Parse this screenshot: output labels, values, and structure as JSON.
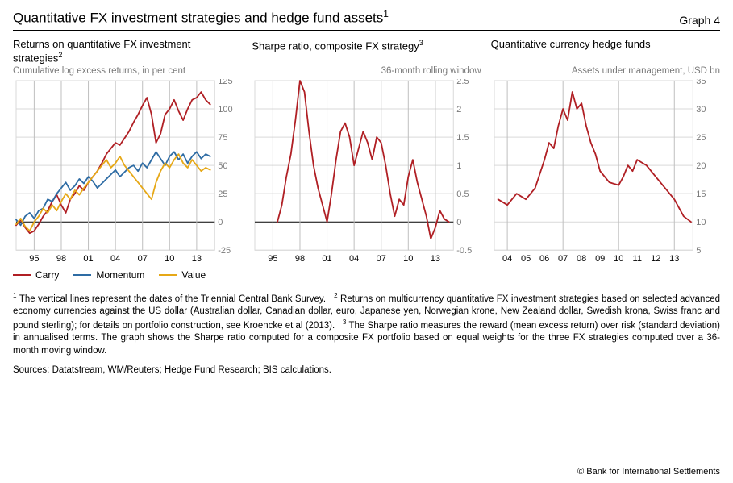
{
  "header": {
    "title_html": "Quantitative FX investment strategies and hedge fund assets<sup>1</sup>",
    "graph_label": "Graph 4"
  },
  "colors": {
    "carry": "#b01f24",
    "momentum": "#2e6ca4",
    "value": "#e6a817",
    "grid": "#d9d9d9",
    "grid_emph": "#bfbfbf",
    "axis_text": "#7a7a7a",
    "zero_line": "#000000",
    "vline": "#bfbfbf",
    "plot_bg": "#ffffff"
  },
  "style": {
    "line_width": 1.8,
    "grid_width": 1,
    "axis_fontsize": 11,
    "title_fontsize": 13,
    "sub_fontsize": 11.5
  },
  "panel1": {
    "title_html": "Returns on quantitative FX investment strategies<sup>2</sup>",
    "sub": "Cumulative log excess returns, in per cent",
    "x": {
      "min": 1993,
      "max": 2015,
      "ticks": [
        95,
        98,
        1,
        4,
        7,
        10,
        13
      ],
      "tick_vals": [
        1995,
        1998,
        2001,
        2004,
        2007,
        2010,
        2013
      ]
    },
    "y": {
      "min": -25,
      "max": 125,
      "ticks": [
        -25,
        0,
        25,
        50,
        75,
        100,
        125
      ]
    },
    "vlines": [
      1995,
      1998,
      2001,
      2004,
      2007,
      2010,
      2013
    ],
    "series": {
      "carry": {
        "color_key": "carry",
        "pts": [
          [
            1993,
            -3
          ],
          [
            1993.5,
            2
          ],
          [
            1994,
            -5
          ],
          [
            1994.5,
            -10
          ],
          [
            1995,
            -8
          ],
          [
            1995.5,
            -2
          ],
          [
            1996,
            5
          ],
          [
            1996.5,
            10
          ],
          [
            1997,
            18
          ],
          [
            1997.5,
            24
          ],
          [
            1998,
            15
          ],
          [
            1998.5,
            8
          ],
          [
            1999,
            20
          ],
          [
            1999.5,
            25
          ],
          [
            2000,
            32
          ],
          [
            2000.5,
            28
          ],
          [
            2001,
            35
          ],
          [
            2001.5,
            40
          ],
          [
            2002,
            45
          ],
          [
            2002.5,
            52
          ],
          [
            2003,
            60
          ],
          [
            2003.5,
            65
          ],
          [
            2004,
            70
          ],
          [
            2004.5,
            68
          ],
          [
            2005,
            74
          ],
          [
            2005.5,
            80
          ],
          [
            2006,
            88
          ],
          [
            2006.5,
            95
          ],
          [
            2007,
            103
          ],
          [
            2007.5,
            110
          ],
          [
            2008,
            95
          ],
          [
            2008.5,
            70
          ],
          [
            2009,
            78
          ],
          [
            2009.5,
            95
          ],
          [
            2010,
            100
          ],
          [
            2010.5,
            108
          ],
          [
            2011,
            98
          ],
          [
            2011.5,
            90
          ],
          [
            2012,
            100
          ],
          [
            2012.5,
            108
          ],
          [
            2013,
            110
          ],
          [
            2013.5,
            115
          ],
          [
            2014,
            108
          ],
          [
            2014.5,
            104
          ]
        ]
      },
      "momentum": {
        "color_key": "momentum",
        "pts": [
          [
            1993,
            2
          ],
          [
            1993.5,
            -3
          ],
          [
            1994,
            5
          ],
          [
            1994.5,
            8
          ],
          [
            1995,
            3
          ],
          [
            1995.5,
            10
          ],
          [
            1996,
            12
          ],
          [
            1996.5,
            20
          ],
          [
            1997,
            18
          ],
          [
            1997.5,
            25
          ],
          [
            1998,
            30
          ],
          [
            1998.5,
            35
          ],
          [
            1999,
            28
          ],
          [
            1999.5,
            32
          ],
          [
            2000,
            38
          ],
          [
            2000.5,
            34
          ],
          [
            2001,
            40
          ],
          [
            2001.5,
            36
          ],
          [
            2002,
            30
          ],
          [
            2002.5,
            34
          ],
          [
            2003,
            38
          ],
          [
            2003.5,
            42
          ],
          [
            2004,
            46
          ],
          [
            2004.5,
            40
          ],
          [
            2005,
            44
          ],
          [
            2005.5,
            48
          ],
          [
            2006,
            50
          ],
          [
            2006.5,
            45
          ],
          [
            2007,
            52
          ],
          [
            2007.5,
            48
          ],
          [
            2008,
            55
          ],
          [
            2008.5,
            62
          ],
          [
            2009,
            56
          ],
          [
            2009.5,
            50
          ],
          [
            2010,
            58
          ],
          [
            2010.5,
            62
          ],
          [
            2011,
            55
          ],
          [
            2011.5,
            60
          ],
          [
            2012,
            52
          ],
          [
            2012.5,
            58
          ],
          [
            2013,
            62
          ],
          [
            2013.5,
            56
          ],
          [
            2014,
            60
          ],
          [
            2014.5,
            58
          ]
        ]
      },
      "value": {
        "color_key": "value",
        "pts": [
          [
            1993,
            -2
          ],
          [
            1993.5,
            3
          ],
          [
            1994,
            -4
          ],
          [
            1994.5,
            -8
          ],
          [
            1995,
            0
          ],
          [
            1995.5,
            5
          ],
          [
            1996,
            12
          ],
          [
            1996.5,
            8
          ],
          [
            1997,
            15
          ],
          [
            1997.5,
            10
          ],
          [
            1998,
            18
          ],
          [
            1998.5,
            25
          ],
          [
            1999,
            20
          ],
          [
            1999.5,
            28
          ],
          [
            2000,
            24
          ],
          [
            2000.5,
            30
          ],
          [
            2001,
            35
          ],
          [
            2001.5,
            40
          ],
          [
            2002,
            45
          ],
          [
            2002.5,
            50
          ],
          [
            2003,
            55
          ],
          [
            2003.5,
            48
          ],
          [
            2004,
            52
          ],
          [
            2004.5,
            58
          ],
          [
            2005,
            50
          ],
          [
            2005.5,
            45
          ],
          [
            2006,
            40
          ],
          [
            2006.5,
            35
          ],
          [
            2007,
            30
          ],
          [
            2007.5,
            25
          ],
          [
            2008,
            20
          ],
          [
            2008.5,
            35
          ],
          [
            2009,
            45
          ],
          [
            2009.5,
            52
          ],
          [
            2010,
            48
          ],
          [
            2010.5,
            55
          ],
          [
            2011,
            60
          ],
          [
            2011.5,
            52
          ],
          [
            2012,
            48
          ],
          [
            2012.5,
            55
          ],
          [
            2013,
            50
          ],
          [
            2013.5,
            45
          ],
          [
            2014,
            48
          ],
          [
            2014.5,
            46
          ]
        ]
      }
    },
    "legend": [
      {
        "label": "Carry",
        "color_key": "carry"
      },
      {
        "label": "Momentum",
        "color_key": "momentum"
      },
      {
        "label": "Value",
        "color_key": "value"
      }
    ]
  },
  "panel2": {
    "title_html": "Sharpe ratio, composite FX strategy<sup>3</sup>",
    "sub": "36-month rolling window",
    "x": {
      "min": 1993,
      "max": 2015,
      "ticks": [
        95,
        98,
        1,
        4,
        7,
        10,
        13
      ],
      "tick_vals": [
        1995,
        1998,
        2001,
        2004,
        2007,
        2010,
        2013
      ]
    },
    "y": {
      "min": -0.5,
      "max": 2.5,
      "ticks": [
        -0.5,
        0.0,
        0.5,
        1.0,
        1.5,
        2.0,
        2.5
      ]
    },
    "vlines": [
      1995,
      1998,
      2001,
      2004,
      2007,
      2010,
      2013
    ],
    "series": {
      "sharpe": {
        "color_key": "carry",
        "pts": [
          [
            1995.5,
            0.0
          ],
          [
            1996,
            0.3
          ],
          [
            1996.5,
            0.8
          ],
          [
            1997,
            1.2
          ],
          [
            1997.5,
            1.8
          ],
          [
            1998,
            2.5
          ],
          [
            1998.5,
            2.3
          ],
          [
            1999,
            1.6
          ],
          [
            1999.5,
            1.0
          ],
          [
            2000,
            0.6
          ],
          [
            2000.5,
            0.3
          ],
          [
            2001,
            0.0
          ],
          [
            2001.5,
            0.5
          ],
          [
            2002,
            1.1
          ],
          [
            2002.5,
            1.6
          ],
          [
            2003,
            1.75
          ],
          [
            2003.5,
            1.5
          ],
          [
            2004,
            1.0
          ],
          [
            2004.5,
            1.3
          ],
          [
            2005,
            1.6
          ],
          [
            2005.5,
            1.4
          ],
          [
            2006,
            1.1
          ],
          [
            2006.5,
            1.5
          ],
          [
            2007,
            1.4
          ],
          [
            2007.5,
            1.0
          ],
          [
            2008,
            0.5
          ],
          [
            2008.5,
            0.1
          ],
          [
            2009,
            0.4
          ],
          [
            2009.5,
            0.3
          ],
          [
            2010,
            0.8
          ],
          [
            2010.5,
            1.1
          ],
          [
            2011,
            0.7
          ],
          [
            2011.5,
            0.4
          ],
          [
            2012,
            0.1
          ],
          [
            2012.5,
            -0.3
          ],
          [
            2013,
            -0.1
          ],
          [
            2013.5,
            0.2
          ],
          [
            2014,
            0.05
          ],
          [
            2014.5,
            0.0
          ]
        ]
      }
    }
  },
  "panel3": {
    "title_html": "Quantitative currency hedge funds",
    "sub": "Assets under management, USD bn",
    "x": {
      "min": 2003.3,
      "max": 2014,
      "ticks": [
        4,
        5,
        6,
        7,
        8,
        9,
        10,
        11,
        12,
        13
      ],
      "tick_vals": [
        2004,
        2005,
        2006,
        2007,
        2008,
        2009,
        2010,
        2011,
        2012,
        2013
      ]
    },
    "y": {
      "min": 5,
      "max": 35,
      "ticks": [
        5,
        10,
        15,
        20,
        25,
        30,
        35
      ]
    },
    "vlines": [
      2004,
      2007,
      2010,
      2013
    ],
    "series": {
      "aum": {
        "color_key": "carry",
        "pts": [
          [
            2003.5,
            14
          ],
          [
            2004,
            13
          ],
          [
            2004.5,
            15
          ],
          [
            2005,
            14
          ],
          [
            2005.5,
            16
          ],
          [
            2006,
            21
          ],
          [
            2006.25,
            24
          ],
          [
            2006.5,
            23
          ],
          [
            2006.75,
            27
          ],
          [
            2007,
            30
          ],
          [
            2007.25,
            28
          ],
          [
            2007.5,
            33
          ],
          [
            2007.75,
            30
          ],
          [
            2008,
            31
          ],
          [
            2008.25,
            27
          ],
          [
            2008.5,
            24
          ],
          [
            2008.75,
            22
          ],
          [
            2009,
            19
          ],
          [
            2009.5,
            17
          ],
          [
            2010,
            16.5
          ],
          [
            2010.25,
            18
          ],
          [
            2010.5,
            20
          ],
          [
            2010.75,
            19
          ],
          [
            2011,
            21
          ],
          [
            2011.5,
            20
          ],
          [
            2012,
            18
          ],
          [
            2012.5,
            16
          ],
          [
            2013,
            14
          ],
          [
            2013.5,
            11
          ],
          [
            2013.9,
            10
          ]
        ]
      }
    }
  },
  "footnotes_html": "<sup>1</sup>&nbsp;The vertical lines represent the dates of the Triennial Central Bank Survey.&nbsp;&nbsp;&nbsp;<sup>2</sup>&nbsp;Returns on multicurrency quantitative FX investment strategies based on selected advanced economy currencies against the US dollar (Australian dollar, Canadian dollar, euro, Japanese yen, Norwegian krone, New Zealand dollar, Swedish krona, Swiss franc and pound sterling); for details on portfolio construction, see Kroencke et al (2013).&nbsp;&nbsp;&nbsp;<sup>3</sup>&nbsp;The Sharpe ratio measures the reward (mean excess return) over risk (standard deviation) in annualised terms. The graph shows the Sharpe ratio computed for a composite FX portfolio based on equal weights for the three FX strategies computed over a 36-month moving window.",
  "sources": "Sources: Datatstream, WM/Reuters; Hedge Fund Research; BIS calculations.",
  "copyright": "© Bank for International Settlements"
}
